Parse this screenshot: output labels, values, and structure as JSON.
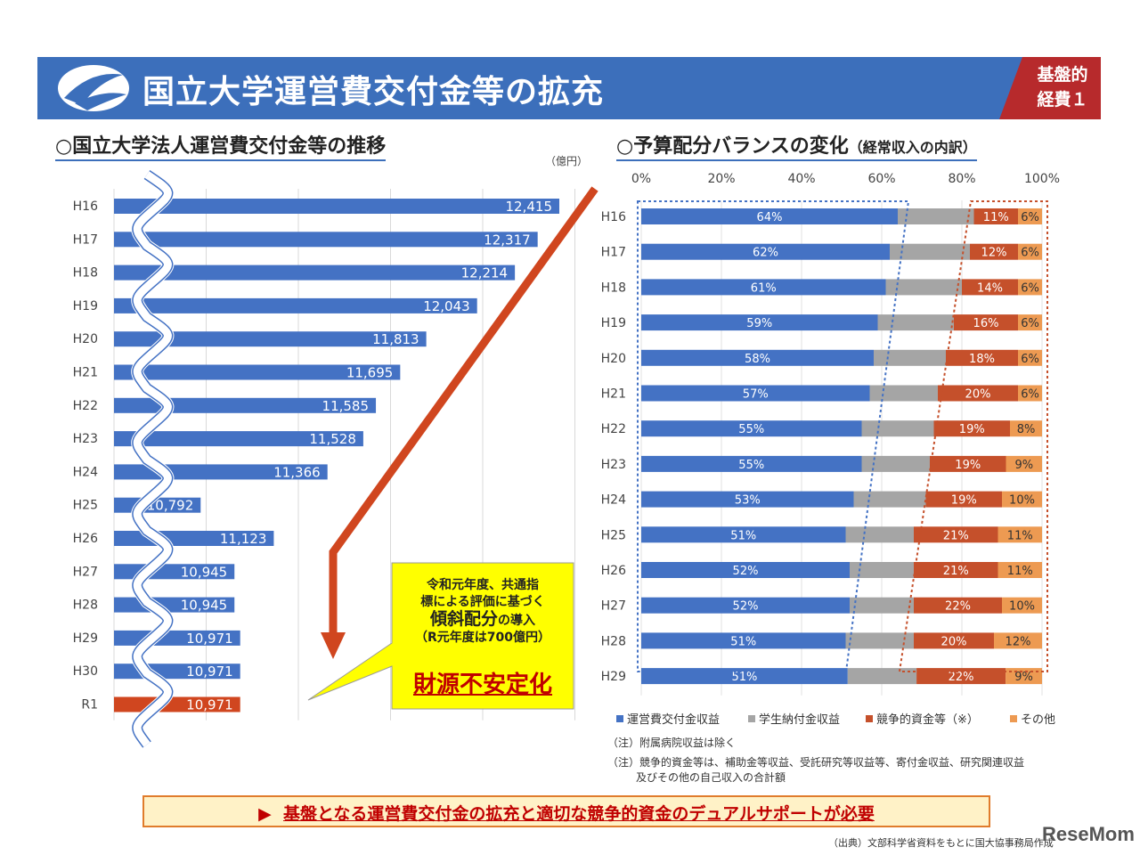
{
  "header": {
    "title": "国立大学運営費交付金等の拡充",
    "badge_line1": "基盤的",
    "badge_line2": "経費１"
  },
  "left": {
    "section_title": "○国立大学法人運営費交付金等の推移",
    "unit": "（億円）"
  },
  "right": {
    "section_title": "○予算配分バランスの変化",
    "section_subtitle": "（経常収入の内訳）"
  },
  "callout": {
    "line1": "令和元年度、共通指",
    "line2": "標による評価に基づく",
    "line3_em": "傾斜配分",
    "line3_rest": "の導入",
    "line4": "（R元年度は700億円）",
    "warning": "財源不安定化"
  },
  "notes": {
    "note1": "（注）附属病院収益は除く",
    "note2": "（注）競争的資金等は、補助金等収益、受託研究等収益等、寄付金収益、研究関連収益",
    "note3": "及びその他の自己収入の合計額"
  },
  "footer": {
    "marker": "▶",
    "text": "基盤となる運営費交付金の拡充と適切な競争的資金のデュアルサポートが必要"
  },
  "source": "（出典）文部科学省資料をもとに国大協事務局作成",
  "watermark": "ReseMom",
  "colors": {
    "blue": "#4472c4",
    "gray": "#a5a5a5",
    "red": "#c5502b",
    "orange": "#ed9a52",
    "highlight": "#d0461f",
    "banner": "#3c6fbb",
    "badge": "#b72a2c",
    "callout_bg": "#ffff00"
  },
  "chart_data": [
    {
      "type": "bar",
      "orientation": "horizontal",
      "unit": "（億円）",
      "categories": [
        "H16",
        "H17",
        "H18",
        "H19",
        "H20",
        "H21",
        "H22",
        "H23",
        "H24",
        "H25",
        "H26",
        "H27",
        "H28",
        "H29",
        "H30",
        "R1"
      ],
      "values": [
        12415,
        12317,
        12214,
        12043,
        11813,
        11695,
        11585,
        11528,
        11366,
        10792,
        11123,
        10945,
        10945,
        10971,
        10971,
        10971
      ],
      "value_labels": [
        "12,415",
        "12,317",
        "12,214",
        "12,043",
        "11,813",
        "11,695",
        "11,585",
        "11,528",
        "11,366",
        "10,792",
        "11,123",
        "10,945",
        "10,945",
        "10,971",
        "10,971",
        "10,971"
      ],
      "axis_break": true,
      "xlim": [
        10400,
        12500
      ],
      "highlight_category": "R1",
      "grid": true
    },
    {
      "type": "bar",
      "orientation": "horizontal",
      "stacked_percent": true,
      "categories": [
        "H16",
        "H17",
        "H18",
        "H19",
        "H20",
        "H21",
        "H22",
        "H23",
        "H24",
        "H25",
        "H26",
        "H27",
        "H28",
        "H29"
      ],
      "x_ticks": [
        "0%",
        "20%",
        "40%",
        "60%",
        "80%",
        "100%"
      ],
      "xlim": [
        0,
        100
      ],
      "series": [
        {
          "name": "運営費交付金収益",
          "values": [
            64,
            62,
            61,
            59,
            58,
            57,
            55,
            55,
            53,
            51,
            52,
            52,
            51,
            51
          ],
          "labels": [
            "64%",
            "62%",
            "61%",
            "59%",
            "58%",
            "57%",
            "55%",
            "55%",
            "53%",
            "51%",
            "52%",
            "52%",
            "51%",
            "51%"
          ]
        },
        {
          "name": "学生納付金収益",
          "values": [
            19,
            20,
            19,
            19,
            18,
            17,
            18,
            17,
            18,
            17,
            16,
            16,
            17,
            17
          ],
          "labels": []
        },
        {
          "name": "競争的資金等（※）",
          "values": [
            11,
            12,
            14,
            16,
            18,
            20,
            19,
            19,
            19,
            21,
            21,
            22,
            20,
            22
          ],
          "labels": [
            "11%",
            "12%",
            "14%",
            "16%",
            "18%",
            "20%",
            "19%",
            "19%",
            "19%",
            "21%",
            "21%",
            "22%",
            "20%",
            "22%"
          ]
        },
        {
          "name": "その他",
          "values": [
            6,
            6,
            6,
            6,
            6,
            6,
            8,
            9,
            10,
            11,
            11,
            10,
            12,
            9
          ],
          "labels": [
            "6%",
            "6%",
            "6%",
            "6%",
            "6%",
            "6%",
            "8%",
            "9%",
            "10%",
            "11%",
            "11%",
            "10%",
            "12%",
            "9%"
          ]
        }
      ],
      "legend_position": "bottom"
    }
  ]
}
